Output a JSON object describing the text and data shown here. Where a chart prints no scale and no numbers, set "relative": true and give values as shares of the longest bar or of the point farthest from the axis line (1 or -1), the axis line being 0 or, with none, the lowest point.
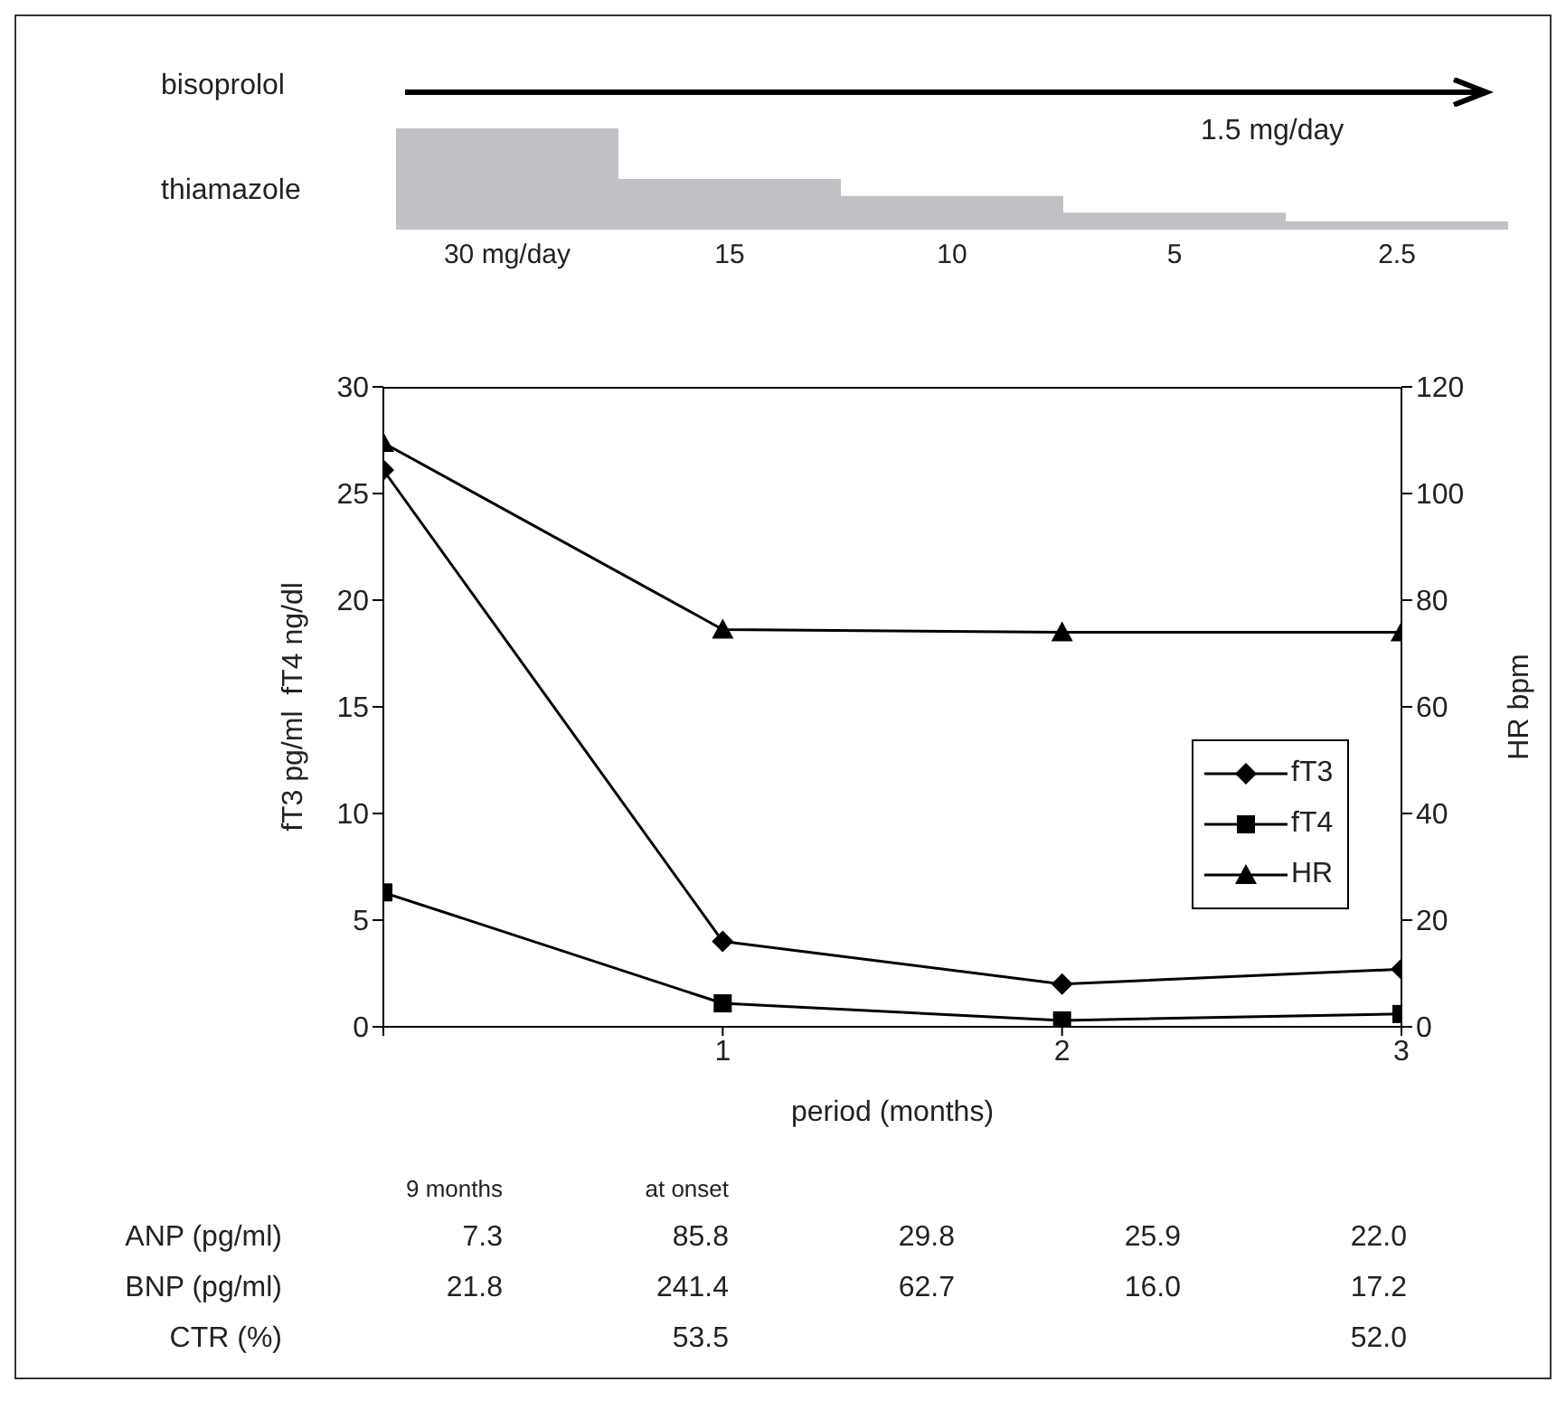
{
  "chart_data": [
    {
      "type": "bar",
      "relative": true,
      "annotations": [
        "bisoprolol",
        "1.5 mg/day"
      ],
      "ylabel": "thiamazole",
      "categories": [
        "30 mg/day",
        "15",
        "10",
        "5",
        "2.5"
      ],
      "values": [
        1,
        0.5,
        0.333,
        0.167,
        0.083
      ],
      "color": "#c0c1c4"
    },
    {
      "type": "line",
      "xlabel": "period (months)",
      "ylabel": "fT3 pg/ml  fT4 ng/dl",
      "y2label": "HR bpm",
      "x": [
        0,
        1,
        2,
        3
      ],
      "xlim": [
        0,
        3
      ],
      "xticks": [
        {
          "value": 0,
          "label": null
        },
        1,
        2,
        3
      ],
      "ylim": [
        0,
        30
      ],
      "yticks": [
        0,
        5,
        10,
        15,
        20,
        25,
        30
      ],
      "y2lim": [
        0,
        120
      ],
      "y2ticks": [
        0,
        20,
        40,
        60,
        80,
        100,
        120
      ],
      "legend": "right",
      "series": [
        {
          "name": "fT3",
          "color": "#000000",
          "marker": "diamond",
          "values": [
            26.1,
            4.0,
            2.0,
            2.7
          ]
        },
        {
          "name": "fT4",
          "color": "#000000",
          "marker": "square",
          "values": [
            6.3,
            1.1,
            0.3,
            0.6
          ]
        },
        {
          "name": "HR",
          "color": "#000000",
          "marker": "triangle",
          "axis": "y2",
          "values": [
            109.5,
            74.5,
            74,
            74
          ]
        }
      ]
    },
    {
      "type": "heatmap",
      "data_labels": true,
      "categories": [
        "9 months",
        "at onset",
        null,
        null,
        null
      ],
      "y_categories": [
        "ANP (pg/ml)",
        "BNP (pg/ml)",
        "CTR (%)"
      ],
      "cells": [
        [
          7.3,
          85.8,
          29.8,
          25.9,
          22.0
        ],
        [
          21.8,
          241.4,
          62.7,
          16.0,
          17.2
        ],
        [
          null,
          53.5,
          null,
          null,
          52.0
        ]
      ],
      "cell_labels": [
        [
          "7.3",
          "85.8",
          "29.8",
          "25.9",
          "22.0"
        ],
        [
          "21.8",
          "241.4",
          "62.7",
          "16.0",
          "17.2"
        ],
        [
          null,
          "53.5",
          null,
          null,
          "52.0"
        ]
      ]
    }
  ]
}
